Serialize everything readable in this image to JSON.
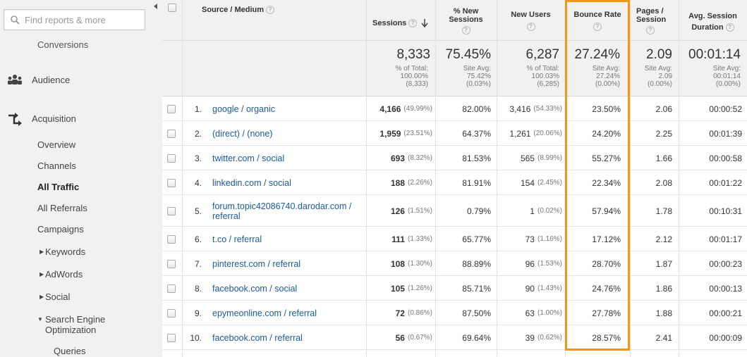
{
  "sidebar": {
    "search_placeholder": "Find reports & more",
    "conversions_label": "Conversions",
    "audience_label": "Audience",
    "acquisition_label": "Acquisition",
    "items": [
      {
        "label": "Overview"
      },
      {
        "label": "Channels"
      },
      {
        "label": "All Traffic"
      },
      {
        "label": "All Referrals"
      },
      {
        "label": "Campaigns"
      },
      {
        "label": "Keywords"
      },
      {
        "label": "AdWords"
      },
      {
        "label": "Social"
      },
      {
        "label": "Search Engine Optimization"
      },
      {
        "label": "Queries"
      }
    ],
    "seo_line1": "Search Engine",
    "seo_line2": "Optimization"
  },
  "columns": {
    "source_medium": "Source / Medium",
    "sessions": "Sessions",
    "new_sessions_1": "% New",
    "new_sessions_2": "Sessions",
    "new_users": "New Users",
    "bounce_rate": "Bounce Rate",
    "pages_1": "Pages /",
    "pages_2": "Session",
    "duration_1": "Avg. Session",
    "duration_2": "Duration"
  },
  "totals": {
    "sessions": {
      "value": "8,333",
      "l1": "% of Total:",
      "l2": "100.00%",
      "l3": "(8,333)"
    },
    "new_sessions": {
      "value": "75.45%",
      "l1": "Site Avg:",
      "l2": "75.42%",
      "l3": "(0.03%)"
    },
    "new_users": {
      "value": "6,287",
      "l1": "% of Total:",
      "l2": "100.03%",
      "l3": "(6,285)"
    },
    "bounce_rate": {
      "value": "27.24%",
      "l1": "Site Avg:",
      "l2": "27.24%",
      "l3": "(0.00%)"
    },
    "pages": {
      "value": "2.09",
      "l1": "Site Avg:",
      "l2": "2.09",
      "l3": "(0.00%)"
    },
    "duration": {
      "value": "00:01:14",
      "l1": "Site Avg:",
      "l2": "00:01:14",
      "l3": "(0.00%)"
    }
  },
  "rows": [
    {
      "num": "1.",
      "source": "google / organic",
      "sessions": "4,166",
      "sessions_pct": "(49.99%)",
      "new_sessions": "82.00%",
      "new_users": "3,416",
      "new_users_pct": "(54.33%)",
      "bounce": "23.50%",
      "pages": "2.06",
      "duration": "00:00:52"
    },
    {
      "num": "2.",
      "source": "(direct) / (none)",
      "sessions": "1,959",
      "sessions_pct": "(23.51%)",
      "new_sessions": "64.37%",
      "new_users": "1,261",
      "new_users_pct": "(20.06%)",
      "bounce": "24.20%",
      "pages": "2.25",
      "duration": "00:01:39"
    },
    {
      "num": "3.",
      "source": "twitter.com / social",
      "sessions": "693",
      "sessions_pct": "(8.32%)",
      "new_sessions": "81.53%",
      "new_users": "565",
      "new_users_pct": "(8.99%)",
      "bounce": "55.27%",
      "pages": "1.66",
      "duration": "00:00:58"
    },
    {
      "num": "4.",
      "source": "linkedin.com / social",
      "sessions": "188",
      "sessions_pct": "(2.26%)",
      "new_sessions": "81.91%",
      "new_users": "154",
      "new_users_pct": "(2.45%)",
      "bounce": "22.34%",
      "pages": "2.08",
      "duration": "00:01:22"
    },
    {
      "num": "5.",
      "source_l1": "forum.topic42086740.darodar.com /",
      "source_l2": "referral",
      "sessions": "126",
      "sessions_pct": "(1.51%)",
      "new_sessions": "0.79%",
      "new_users": "1",
      "new_users_pct": "(0.02%)",
      "bounce": "57.94%",
      "pages": "1.78",
      "duration": "00:10:31"
    },
    {
      "num": "6.",
      "source": "t.co / referral",
      "sessions": "111",
      "sessions_pct": "(1.33%)",
      "new_sessions": "65.77%",
      "new_users": "73",
      "new_users_pct": "(1.16%)",
      "bounce": "17.12%",
      "pages": "2.12",
      "duration": "00:01:17"
    },
    {
      "num": "7.",
      "source": "pinterest.com / referral",
      "sessions": "108",
      "sessions_pct": "(1.30%)",
      "new_sessions": "88.89%",
      "new_users": "96",
      "new_users_pct": "(1.53%)",
      "bounce": "28.70%",
      "pages": "1.87",
      "duration": "00:00:23"
    },
    {
      "num": "8.",
      "source": "facebook.com / social",
      "sessions": "105",
      "sessions_pct": "(1.26%)",
      "new_sessions": "85.71%",
      "new_users": "90",
      "new_users_pct": "(1.43%)",
      "bounce": "24.76%",
      "pages": "1.86",
      "duration": "00:00:13"
    },
    {
      "num": "9.",
      "source": "epymeonline.com / referral",
      "sessions": "72",
      "sessions_pct": "(0.86%)",
      "new_sessions": "87.50%",
      "new_users": "63",
      "new_users_pct": "(1.00%)",
      "bounce": "27.78%",
      "pages": "1.88",
      "duration": "00:00:21"
    },
    {
      "num": "10.",
      "source": "facebook.com / referral",
      "sessions": "56",
      "sessions_pct": "(0.67%)",
      "new_sessions": "69.64%",
      "new_users": "39",
      "new_users_pct": "(0.62%)",
      "bounce": "28.57%",
      "pages": "2.41",
      "duration": "00:00:09"
    }
  ],
  "colors": {
    "highlight": "#f29a0f",
    "link": "#1a5b9c"
  }
}
